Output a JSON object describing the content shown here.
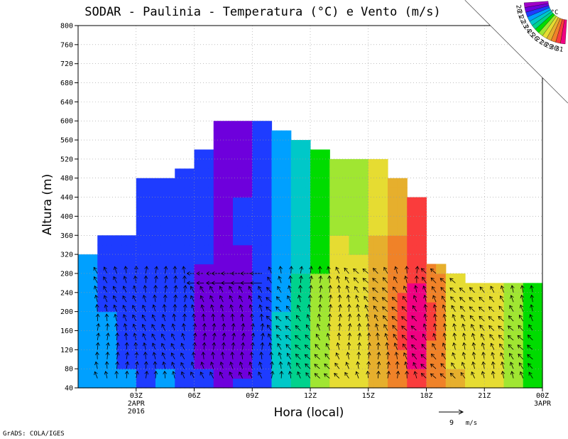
{
  "chart_data": {
    "type": "heatmap",
    "title": "SODAR - Paulinia - Temperatura (°C) e Vento (m/s)",
    "xlabel": "Hora (local)",
    "ylabel": "Altura (m)",
    "ylim": [
      40,
      800
    ],
    "xlim_hours": [
      0,
      24
    ],
    "y_ticks": [
      40,
      80,
      120,
      160,
      200,
      240,
      280,
      320,
      360,
      400,
      440,
      480,
      520,
      560,
      600,
      640,
      680,
      720,
      760,
      800
    ],
    "x_ticks": [
      {
        "hour": 3,
        "label": "03Z",
        "sub1": "2APR",
        "sub2": "2016"
      },
      {
        "hour": 6,
        "label": "06Z"
      },
      {
        "hour": 9,
        "label": "09Z"
      },
      {
        "hour": 12,
        "label": "12Z"
      },
      {
        "hour": 15,
        "label": "15Z"
      },
      {
        "hour": 18,
        "label": "18Z"
      },
      {
        "hour": 21,
        "label": "21Z"
      },
      {
        "hour": 24,
        "label": "00Z",
        "sub1": "3APR"
      }
    ],
    "grid": true,
    "legend": {
      "position": "top-right",
      "unit": "°C",
      "levels": [
        20,
        21,
        22,
        23,
        24,
        25,
        26,
        27,
        28,
        29,
        30,
        31
      ],
      "colors": [
        "#a000c8",
        "#6e00dc",
        "#1e3cff",
        "#00a0ff",
        "#00c8c8",
        "#00d28c",
        "#00dc00",
        "#a0e632",
        "#e6dc32",
        "#e6af2d",
        "#f08228",
        "#fa3c3c",
        "#f00082"
      ]
    },
    "envelope": [
      {
        "x0": 0.0,
        "x1": 1.0,
        "top": 320
      },
      {
        "x0": 1.0,
        "x1": 3.0,
        "top": 360
      },
      {
        "x0": 3.0,
        "x1": 5.0,
        "top": 480
      },
      {
        "x0": 5.0,
        "x1": 6.0,
        "top": 500
      },
      {
        "x0": 6.0,
        "x1": 7.0,
        "top": 540
      },
      {
        "x0": 7.0,
        "x1": 10.0,
        "top": 600
      },
      {
        "x0": 10.0,
        "x1": 11.0,
        "top": 580
      },
      {
        "x0": 11.0,
        "x1": 12.0,
        "top": 560
      },
      {
        "x0": 12.0,
        "x1": 13.0,
        "top": 540
      },
      {
        "x0": 13.0,
        "x1": 16.0,
        "top": 520
      },
      {
        "x0": 16.0,
        "x1": 17.0,
        "top": 480
      },
      {
        "x0": 17.0,
        "x1": 18.0,
        "top": 440
      },
      {
        "x0": 18.0,
        "x1": 19.0,
        "top": 300
      },
      {
        "x0": 19.0,
        "x1": 20.0,
        "top": 280
      },
      {
        "x0": 20.0,
        "x1": 22.0,
        "top": 260
      },
      {
        "x0": 22.0,
        "x1": 24.0,
        "top": 260
      }
    ],
    "temperature_columns": [
      {
        "x0": 0.0,
        "x1": 1.0,
        "t": 22.2
      },
      {
        "x0": 1.0,
        "x1": 2.0,
        "t": 22.0
      },
      {
        "x0": 2.0,
        "x1": 3.0,
        "t": 21.9
      },
      {
        "x0": 3.0,
        "x1": 4.0,
        "t": 21.8
      },
      {
        "x0": 4.0,
        "x1": 5.0,
        "t": 21.9
      },
      {
        "x0": 5.0,
        "x1": 6.0,
        "t": 21.6
      },
      {
        "x0": 6.0,
        "x1": 7.0,
        "t": 21.3
      },
      {
        "x0": 7.0,
        "x1": 8.0,
        "t": 21.0
      },
      {
        "x0": 8.0,
        "x1": 9.0,
        "t": 21.2
      },
      {
        "x0": 9.0,
        "x1": 10.0,
        "t": 21.8
      },
      {
        "x0": 10.0,
        "x1": 11.0,
        "t": 23.0
      },
      {
        "x0": 11.0,
        "x1": 12.0,
        "t": 24.2
      },
      {
        "x0": 12.0,
        "x1": 13.0,
        "t": 26.2
      },
      {
        "x0": 13.0,
        "x1": 14.0,
        "t": 27.4
      },
      {
        "x0": 14.0,
        "x1": 15.0,
        "t": 27.3
      },
      {
        "x0": 15.0,
        "x1": 16.0,
        "t": 28.4
      },
      {
        "x0": 16.0,
        "x1": 17.0,
        "t": 29.4
      },
      {
        "x0": 17.0,
        "x1": 18.0,
        "t": 30.6
      },
      {
        "x0": 18.0,
        "x1": 19.0,
        "t": 29.2
      },
      {
        "x0": 19.0,
        "x1": 20.0,
        "t": 27.9
      },
      {
        "x0": 20.0,
        "x1": 21.0,
        "t": 27.7
      },
      {
        "x0": 21.0,
        "x1": 22.0,
        "t": 27.3
      },
      {
        "x0": 22.0,
        "x1": 23.0,
        "t": 26.3
      },
      {
        "x0": 23.0,
        "x1": 24.0,
        "t": 25.8
      }
    ],
    "wind_reference": {
      "speed_label": "9",
      "unit": "m/s"
    },
    "credit": "GrADS: COLA/IGES"
  }
}
